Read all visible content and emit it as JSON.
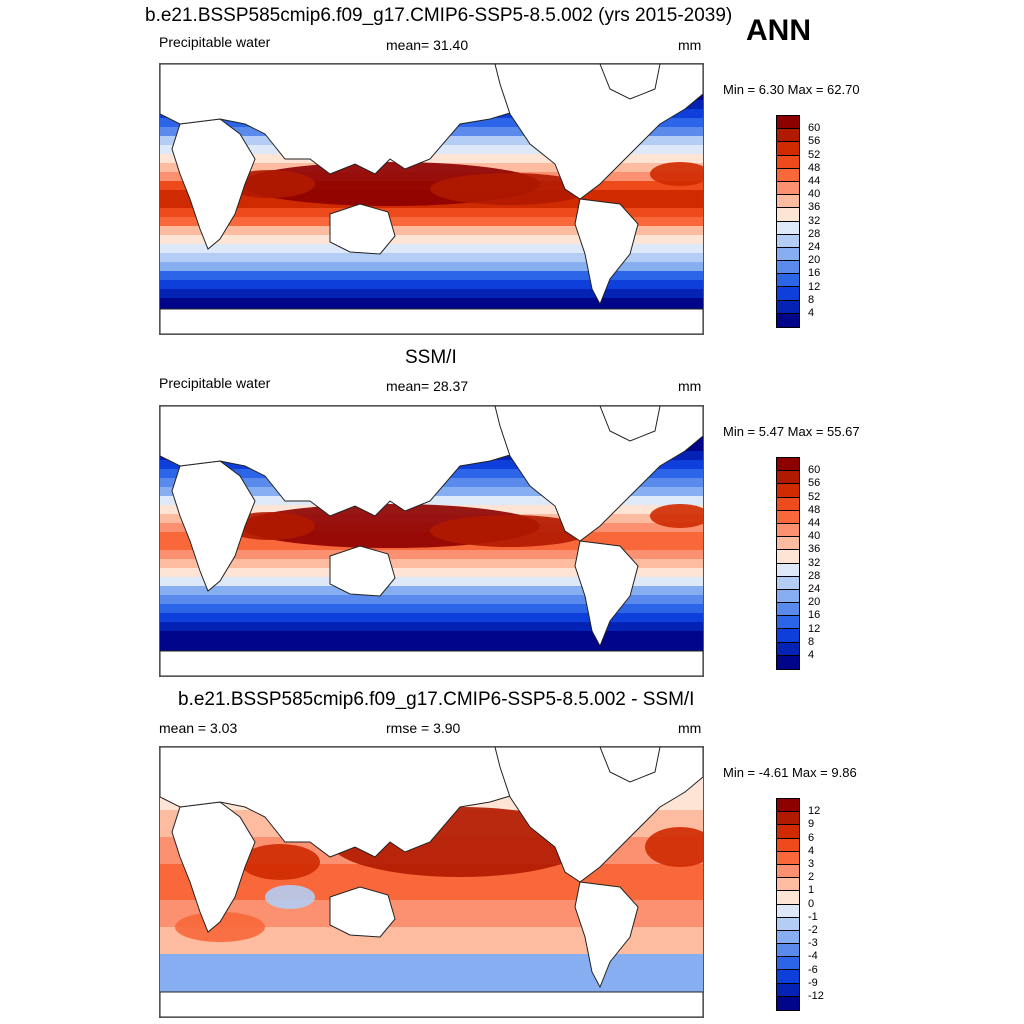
{
  "header": {
    "title_top": "b.e21.BSSP585cmip6.f09_g17.CMIP6-SSP5-8.5.002 (yrs 2015-2039)",
    "season": "ANN"
  },
  "panels": [
    {
      "id": "model",
      "title": "",
      "left_label": "Precipitable water",
      "center_label": "mean=  31.40",
      "units": "mm",
      "minmax": "Min =   6.30 Max =  62.70",
      "colorbar_labels": [
        "60",
        "56",
        "52",
        "48",
        "44",
        "40",
        "36",
        "32",
        "28",
        "24",
        "20",
        "16",
        "12",
        "8",
        "4"
      ]
    },
    {
      "id": "obs",
      "title": "SSM/I",
      "left_label": "Precipitable water",
      "center_label": "mean=  28.37",
      "units": "mm",
      "minmax": "Min =   5.47 Max =  55.67",
      "colorbar_labels": [
        "60",
        "56",
        "52",
        "48",
        "44",
        "40",
        "36",
        "32",
        "28",
        "24",
        "20",
        "16",
        "12",
        "8",
        "4"
      ]
    },
    {
      "id": "diff",
      "title": "b.e21.BSSP585cmip6.f09_g17.CMIP6-SSP5-8.5.002 - SSM/I",
      "left_label": "mean =   3.03",
      "center_label": "rmse =   3.90",
      "units": "mm",
      "minmax": "Min =  -4.61 Max =   9.86",
      "colorbar_labels": [
        "12",
        "9",
        "6",
        "4",
        "3",
        "2",
        "1",
        "0",
        "-1",
        "-2",
        "-3",
        "-4",
        "-6",
        "-9",
        "-12"
      ]
    }
  ],
  "colors": {
    "scale": [
      "#8c0000",
      "#b01a00",
      "#cf2a00",
      "#ee4b1d",
      "#f8683a",
      "#fb9170",
      "#fdbba0",
      "#fde4d5",
      "#dde8f8",
      "#b4cdf4",
      "#86aef0",
      "#5a8bec",
      "#2d65e8",
      "#0f3fdb",
      "#0423b4",
      "#00058a"
    ],
    "land": "#ffffff",
    "coast": "#222222"
  }
}
